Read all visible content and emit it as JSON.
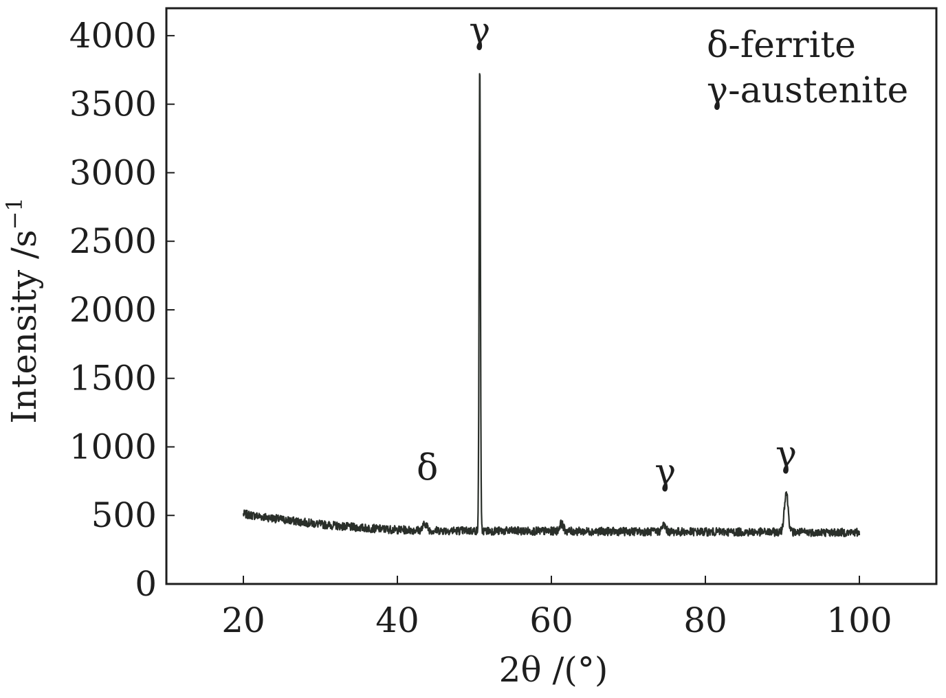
{
  "chart_data": {
    "type": "line",
    "xlabel": "2θ /(°)",
    "ylabel_main": "Intensity /s",
    "ylabel_sup": "−1",
    "xlim": [
      10,
      110
    ],
    "ylim": [
      0,
      4200
    ],
    "xticks": [
      20,
      40,
      60,
      80,
      100
    ],
    "yticks": [
      0,
      500,
      1000,
      1500,
      2000,
      2500,
      3000,
      3500,
      4000
    ],
    "grid": false,
    "legend_position": "top-right",
    "legend": [
      "δ-ferrite",
      "γ-austenite"
    ],
    "colors": {
      "line": "#2a2f2a",
      "text": "#1e1e1e",
      "frame": "#1e1e1e"
    },
    "series": [
      {
        "x_range": [
          20,
          100
        ],
        "background": [
          [
            20,
            510
          ],
          [
            25,
            470
          ],
          [
            30,
            435
          ],
          [
            35,
            410
          ],
          [
            40,
            395
          ],
          [
            45,
            390
          ],
          [
            50,
            388
          ],
          [
            60,
            385
          ],
          [
            70,
            382
          ],
          [
            80,
            380
          ],
          [
            90,
            378
          ],
          [
            100,
            375
          ]
        ],
        "peaks": [
          {
            "x": 43.6,
            "height": 440,
            "phase": "δ"
          },
          {
            "x": 50.7,
            "height": 3800,
            "phase": "γ"
          },
          {
            "x": 61.3,
            "height": 440,
            "phase": ""
          },
          {
            "x": 74.6,
            "height": 430,
            "phase": "γ"
          },
          {
            "x": 90.5,
            "height": 670,
            "phase": "γ"
          }
        ],
        "noise_amplitude": 30
      }
    ],
    "annotations": [
      {
        "text": "γ",
        "x": 50.7,
        "y": 3950
      },
      {
        "text": "δ",
        "x": 43.9,
        "y": 760
      },
      {
        "text": "γ",
        "x": 74.8,
        "y": 730
      },
      {
        "text": "γ",
        "x": 90.5,
        "y": 860
      }
    ]
  }
}
